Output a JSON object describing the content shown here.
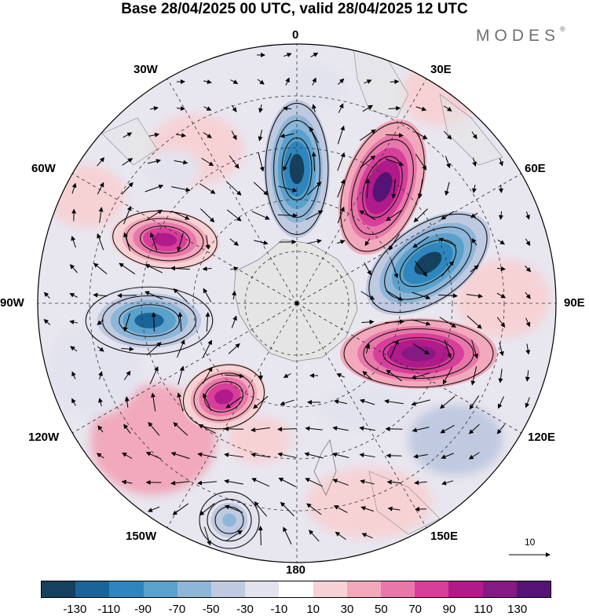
{
  "title": "Base 28/04/2025 00 UTC, valid 28/04/2025 12 UTC",
  "brand": "MODES",
  "brand_mark": "®",
  "longitude_labels": {
    "0": "0",
    "30E": "30E",
    "60E": "60E",
    "90E": "90E",
    "120E": "120E",
    "150E": "150E",
    "180": "180",
    "150W": "150W",
    "120W": "120W",
    "90W": "90W",
    "60W": "60W",
    "30W": "30W"
  },
  "reference_vector": "10",
  "colorbar": {
    "labels": [
      "-130",
      "-110",
      "-90",
      "-70",
      "-50",
      "-30",
      "-10",
      "10",
      "30",
      "50",
      "70",
      "90",
      "110",
      "130"
    ],
    "colors": [
      "#15405e",
      "#1b6499",
      "#2e86bd",
      "#5aa1cb",
      "#8eb6d8",
      "#bfc9e0",
      "#e3e3ef",
      "#ffffff",
      "#f6d2d5",
      "#f1a9bb",
      "#e978aa",
      "#d63f9a",
      "#b01a8a",
      "#851a82",
      "#561376"
    ]
  },
  "anomaly_centers": [
    {
      "label": "north-negative",
      "value": -120,
      "color": "#15405e"
    },
    {
      "label": "northeast-positive",
      "value": 135,
      "color": "#561376"
    },
    {
      "label": "east-negative",
      "value": -130,
      "color": "#15405e"
    },
    {
      "label": "southeast-positive",
      "value": 125,
      "color": "#851a82"
    },
    {
      "label": "southwest-positive",
      "value": 95,
      "color": "#b01a8a"
    },
    {
      "label": "west-negative",
      "value": -105,
      "color": "#1b6499"
    },
    {
      "label": "northwest-positive",
      "value": 100,
      "color": "#b01a8a"
    },
    {
      "label": "south-negative",
      "value": -55,
      "color": "#8eb6d8"
    }
  ]
}
